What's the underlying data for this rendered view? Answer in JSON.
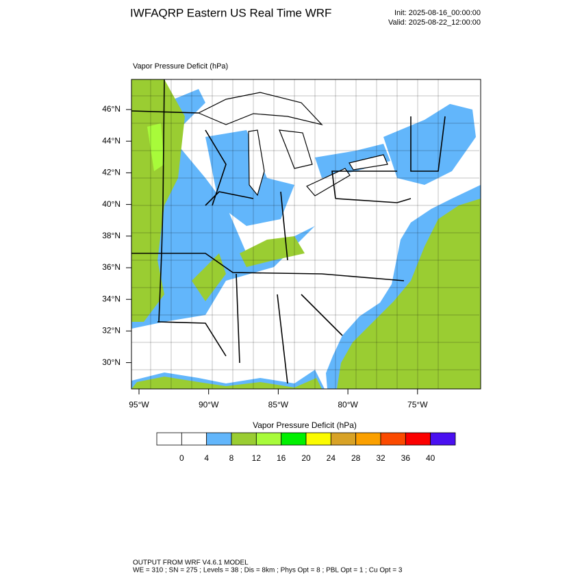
{
  "header": {
    "title": "IWFAQRP Eastern US Real Time WRF",
    "init": "Init: 2025-08-16_00:00:00",
    "valid": "Valid: 2025-08-22_12:00:00"
  },
  "map": {
    "field_label": "Vapor Pressure Deficit   (hPa)",
    "lat_labels": [
      "46°N",
      "44°N",
      "42°N",
      "40°N",
      "38°N",
      "36°N",
      "34°N",
      "32°N",
      "30°N"
    ],
    "lon_labels": [
      "95°W",
      "90°W",
      "85°W",
      "80°W",
      "75°W"
    ]
  },
  "colorbar": {
    "title": "Vapor Pressure Deficit   (hPa)",
    "levels": [
      0,
      4,
      8,
      12,
      16,
      20,
      24,
      28,
      32,
      36,
      40
    ],
    "colors": [
      "#ffffff",
      "#ffffff",
      "#62b6fb",
      "#9acd32",
      "#a8fb3a",
      "#00f000",
      "#fbfb00",
      "#d8a226",
      "#fba000",
      "#fb4a00",
      "#fb0000",
      "#4a10f0"
    ]
  },
  "footer": {
    "line1": "OUTPUT FROM WRF V4.6.1 MODEL",
    "line2": "WE = 310 ; SN = 275 ; Levels = 38 ; Dis = 8km ; Phys Opt = 8 ; PBL Opt = 1 ; Cu Opt = 3"
  }
}
